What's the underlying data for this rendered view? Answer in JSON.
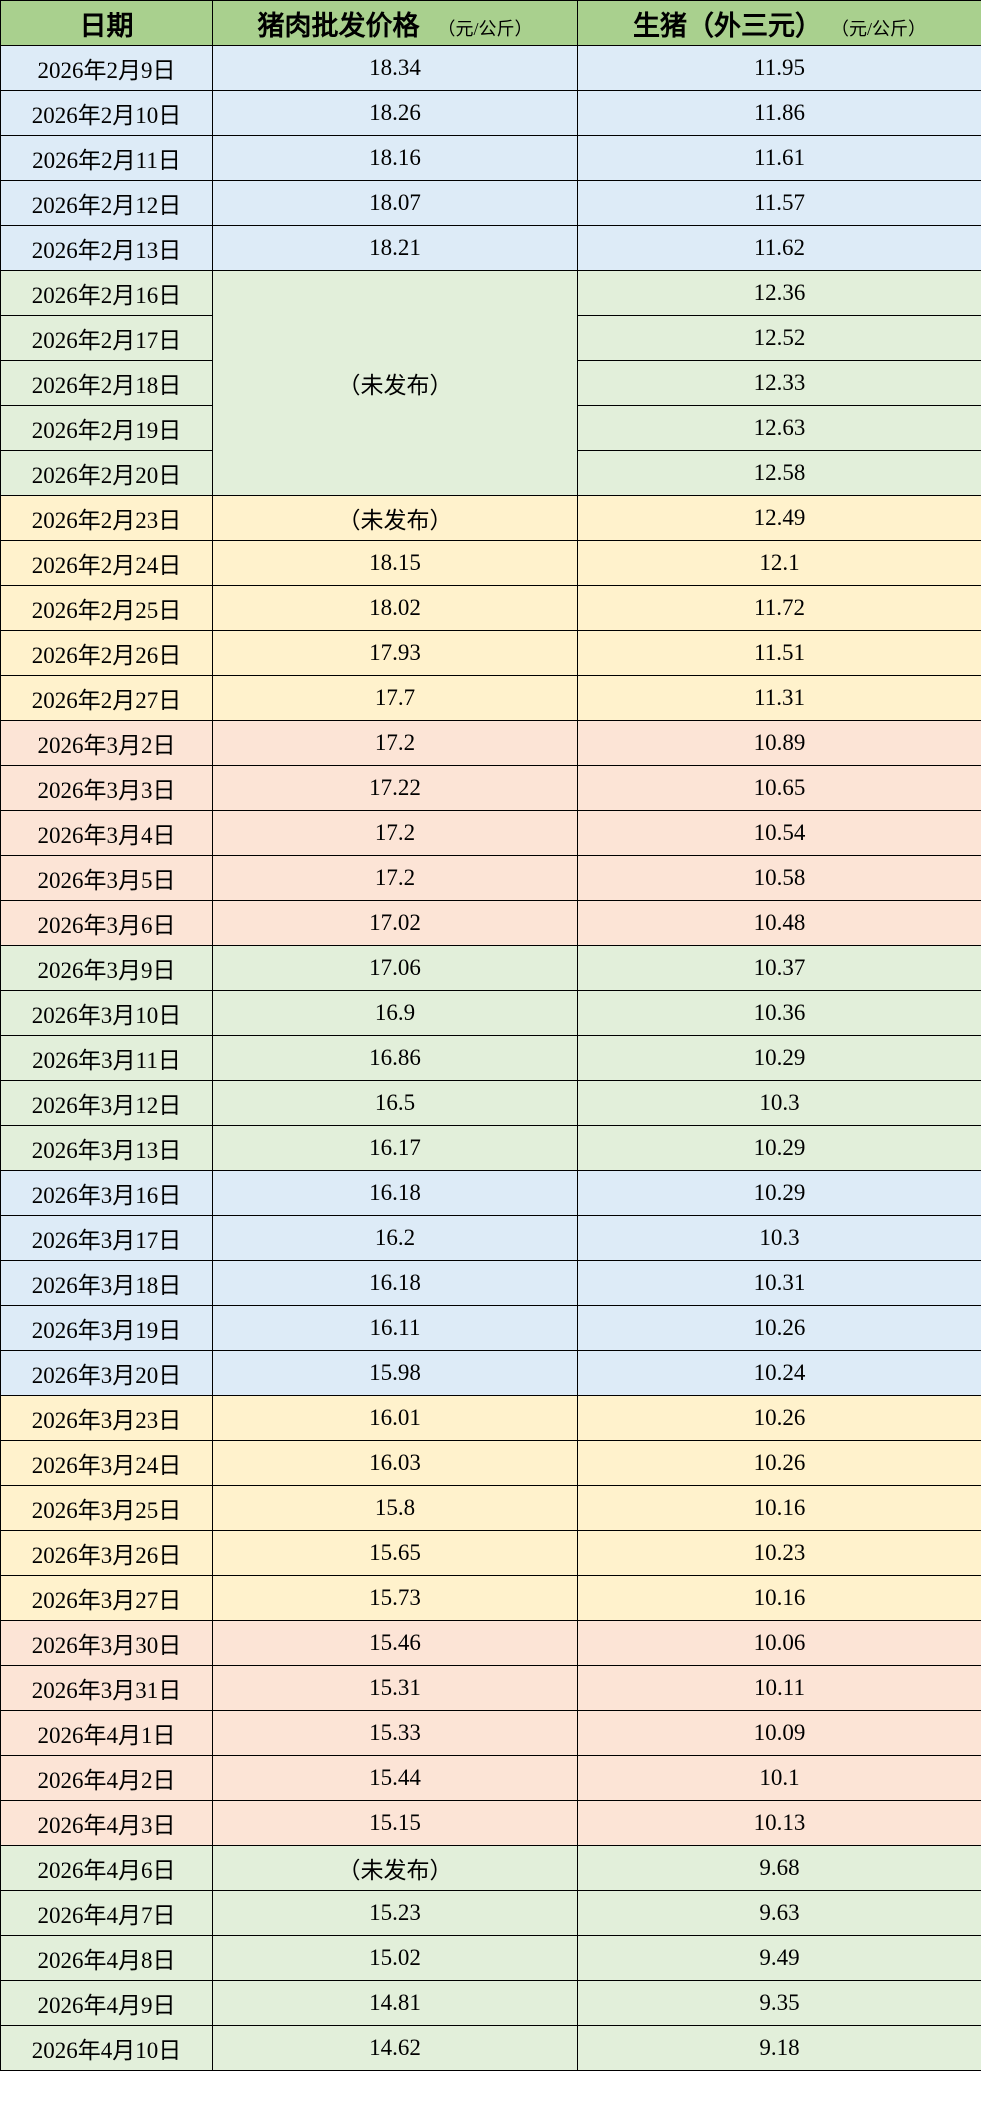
{
  "header": {
    "date": "日期",
    "pork": "猪肉批发价格",
    "pork_unit": "（元/公斤）",
    "hog": "生猪（外三元）",
    "hog_unit": "（元/公斤）",
    "color": "#A9D08E"
  },
  "groups": [
    {
      "color": "#DDEBF7",
      "rows": [
        {
          "date": "2026年2月9日",
          "pork": "18.34",
          "hog": "11.95"
        },
        {
          "date": "2026年2月10日",
          "pork": "18.26",
          "hog": "11.86"
        },
        {
          "date": "2026年2月11日",
          "pork": "18.16",
          "hog": "11.61"
        },
        {
          "date": "2026年2月12日",
          "pork": "18.07",
          "hog": "11.57"
        },
        {
          "date": "2026年2月13日",
          "pork": "18.21",
          "hog": "11.62"
        }
      ]
    },
    {
      "color": "#E2EFDA",
      "pork_merged": "（未发布）",
      "rows": [
        {
          "date": "2026年2月16日",
          "hog": "12.36"
        },
        {
          "date": "2026年2月17日",
          "hog": "12.52"
        },
        {
          "date": "2026年2月18日",
          "hog": "12.33"
        },
        {
          "date": "2026年2月19日",
          "hog": "12.63"
        },
        {
          "date": "2026年2月20日",
          "hog": "12.58"
        }
      ]
    },
    {
      "color": "#FFF2CC",
      "rows": [
        {
          "date": "2026年2月23日",
          "pork": "（未发布）",
          "hog": "12.49"
        },
        {
          "date": "2026年2月24日",
          "pork": "18.15",
          "hog": "12.1"
        },
        {
          "date": "2026年2月25日",
          "pork": "18.02",
          "hog": "11.72"
        },
        {
          "date": "2026年2月26日",
          "pork": "17.93",
          "hog": "11.51"
        },
        {
          "date": "2026年2月27日",
          "pork": "17.7",
          "hog": "11.31"
        }
      ]
    },
    {
      "color": "#FCE4D6",
      "rows": [
        {
          "date": "2026年3月2日",
          "pork": "17.2",
          "hog": "10.89"
        },
        {
          "date": "2026年3月3日",
          "pork": "17.22",
          "hog": "10.65"
        },
        {
          "date": "2026年3月4日",
          "pork": "17.2",
          "hog": "10.54"
        },
        {
          "date": "2026年3月5日",
          "pork": "17.2",
          "hog": "10.58"
        },
        {
          "date": "2026年3月6日",
          "pork": "17.02",
          "hog": "10.48"
        }
      ]
    },
    {
      "color": "#E2EFDA",
      "rows": [
        {
          "date": "2026年3月9日",
          "pork": "17.06",
          "hog": "10.37"
        },
        {
          "date": "2026年3月10日",
          "pork": "16.9",
          "hog": "10.36"
        },
        {
          "date": "2026年3月11日",
          "pork": "16.86",
          "hog": "10.29"
        },
        {
          "date": "2026年3月12日",
          "pork": "16.5",
          "hog": "10.3"
        },
        {
          "date": "2026年3月13日",
          "pork": "16.17",
          "hog": "10.29"
        }
      ]
    },
    {
      "color": "#DDEBF7",
      "rows": [
        {
          "date": "2026年3月16日",
          "pork": "16.18",
          "hog": "10.29"
        },
        {
          "date": "2026年3月17日",
          "pork": "16.2",
          "hog": "10.3"
        },
        {
          "date": "2026年3月18日",
          "pork": "16.18",
          "hog": "10.31"
        },
        {
          "date": "2026年3月19日",
          "pork": "16.11",
          "hog": "10.26"
        },
        {
          "date": "2026年3月20日",
          "pork": "15.98",
          "hog": "10.24"
        }
      ]
    },
    {
      "color": "#FFF2CC",
      "rows": [
        {
          "date": "2026年3月23日",
          "pork": "16.01",
          "hog": "10.26"
        },
        {
          "date": "2026年3月24日",
          "pork": "16.03",
          "hog": "10.26"
        },
        {
          "date": "2026年3月25日",
          "pork": "15.8",
          "hog": "10.16"
        },
        {
          "date": "2026年3月26日",
          "pork": "15.65",
          "hog": "10.23"
        },
        {
          "date": "2026年3月27日",
          "pork": "15.73",
          "hog": "10.16"
        }
      ]
    },
    {
      "color": "#FCE4D6",
      "rows": [
        {
          "date": "2026年3月30日",
          "pork": "15.46",
          "hog": "10.06"
        },
        {
          "date": "2026年3月31日",
          "pork": "15.31",
          "hog": "10.11"
        },
        {
          "date": "2026年4月1日",
          "pork": "15.33",
          "hog": "10.09"
        },
        {
          "date": "2026年4月2日",
          "pork": "15.44",
          "hog": "10.1"
        },
        {
          "date": "2026年4月3日",
          "pork": "15.15",
          "hog": "10.13"
        }
      ]
    },
    {
      "color": "#E2EFDA",
      "rows": [
        {
          "date": "2026年4月6日",
          "pork": "（未发布）",
          "hog": "9.68"
        },
        {
          "date": "2026年4月7日",
          "pork": "15.23",
          "hog": "9.63"
        },
        {
          "date": "2026年4月8日",
          "pork": "15.02",
          "hog": "9.49"
        },
        {
          "date": "2026年4月9日",
          "pork": "14.81",
          "hog": "9.35"
        },
        {
          "date": "2026年4月10日",
          "pork": "14.62",
          "hog": "9.18"
        }
      ]
    }
  ]
}
